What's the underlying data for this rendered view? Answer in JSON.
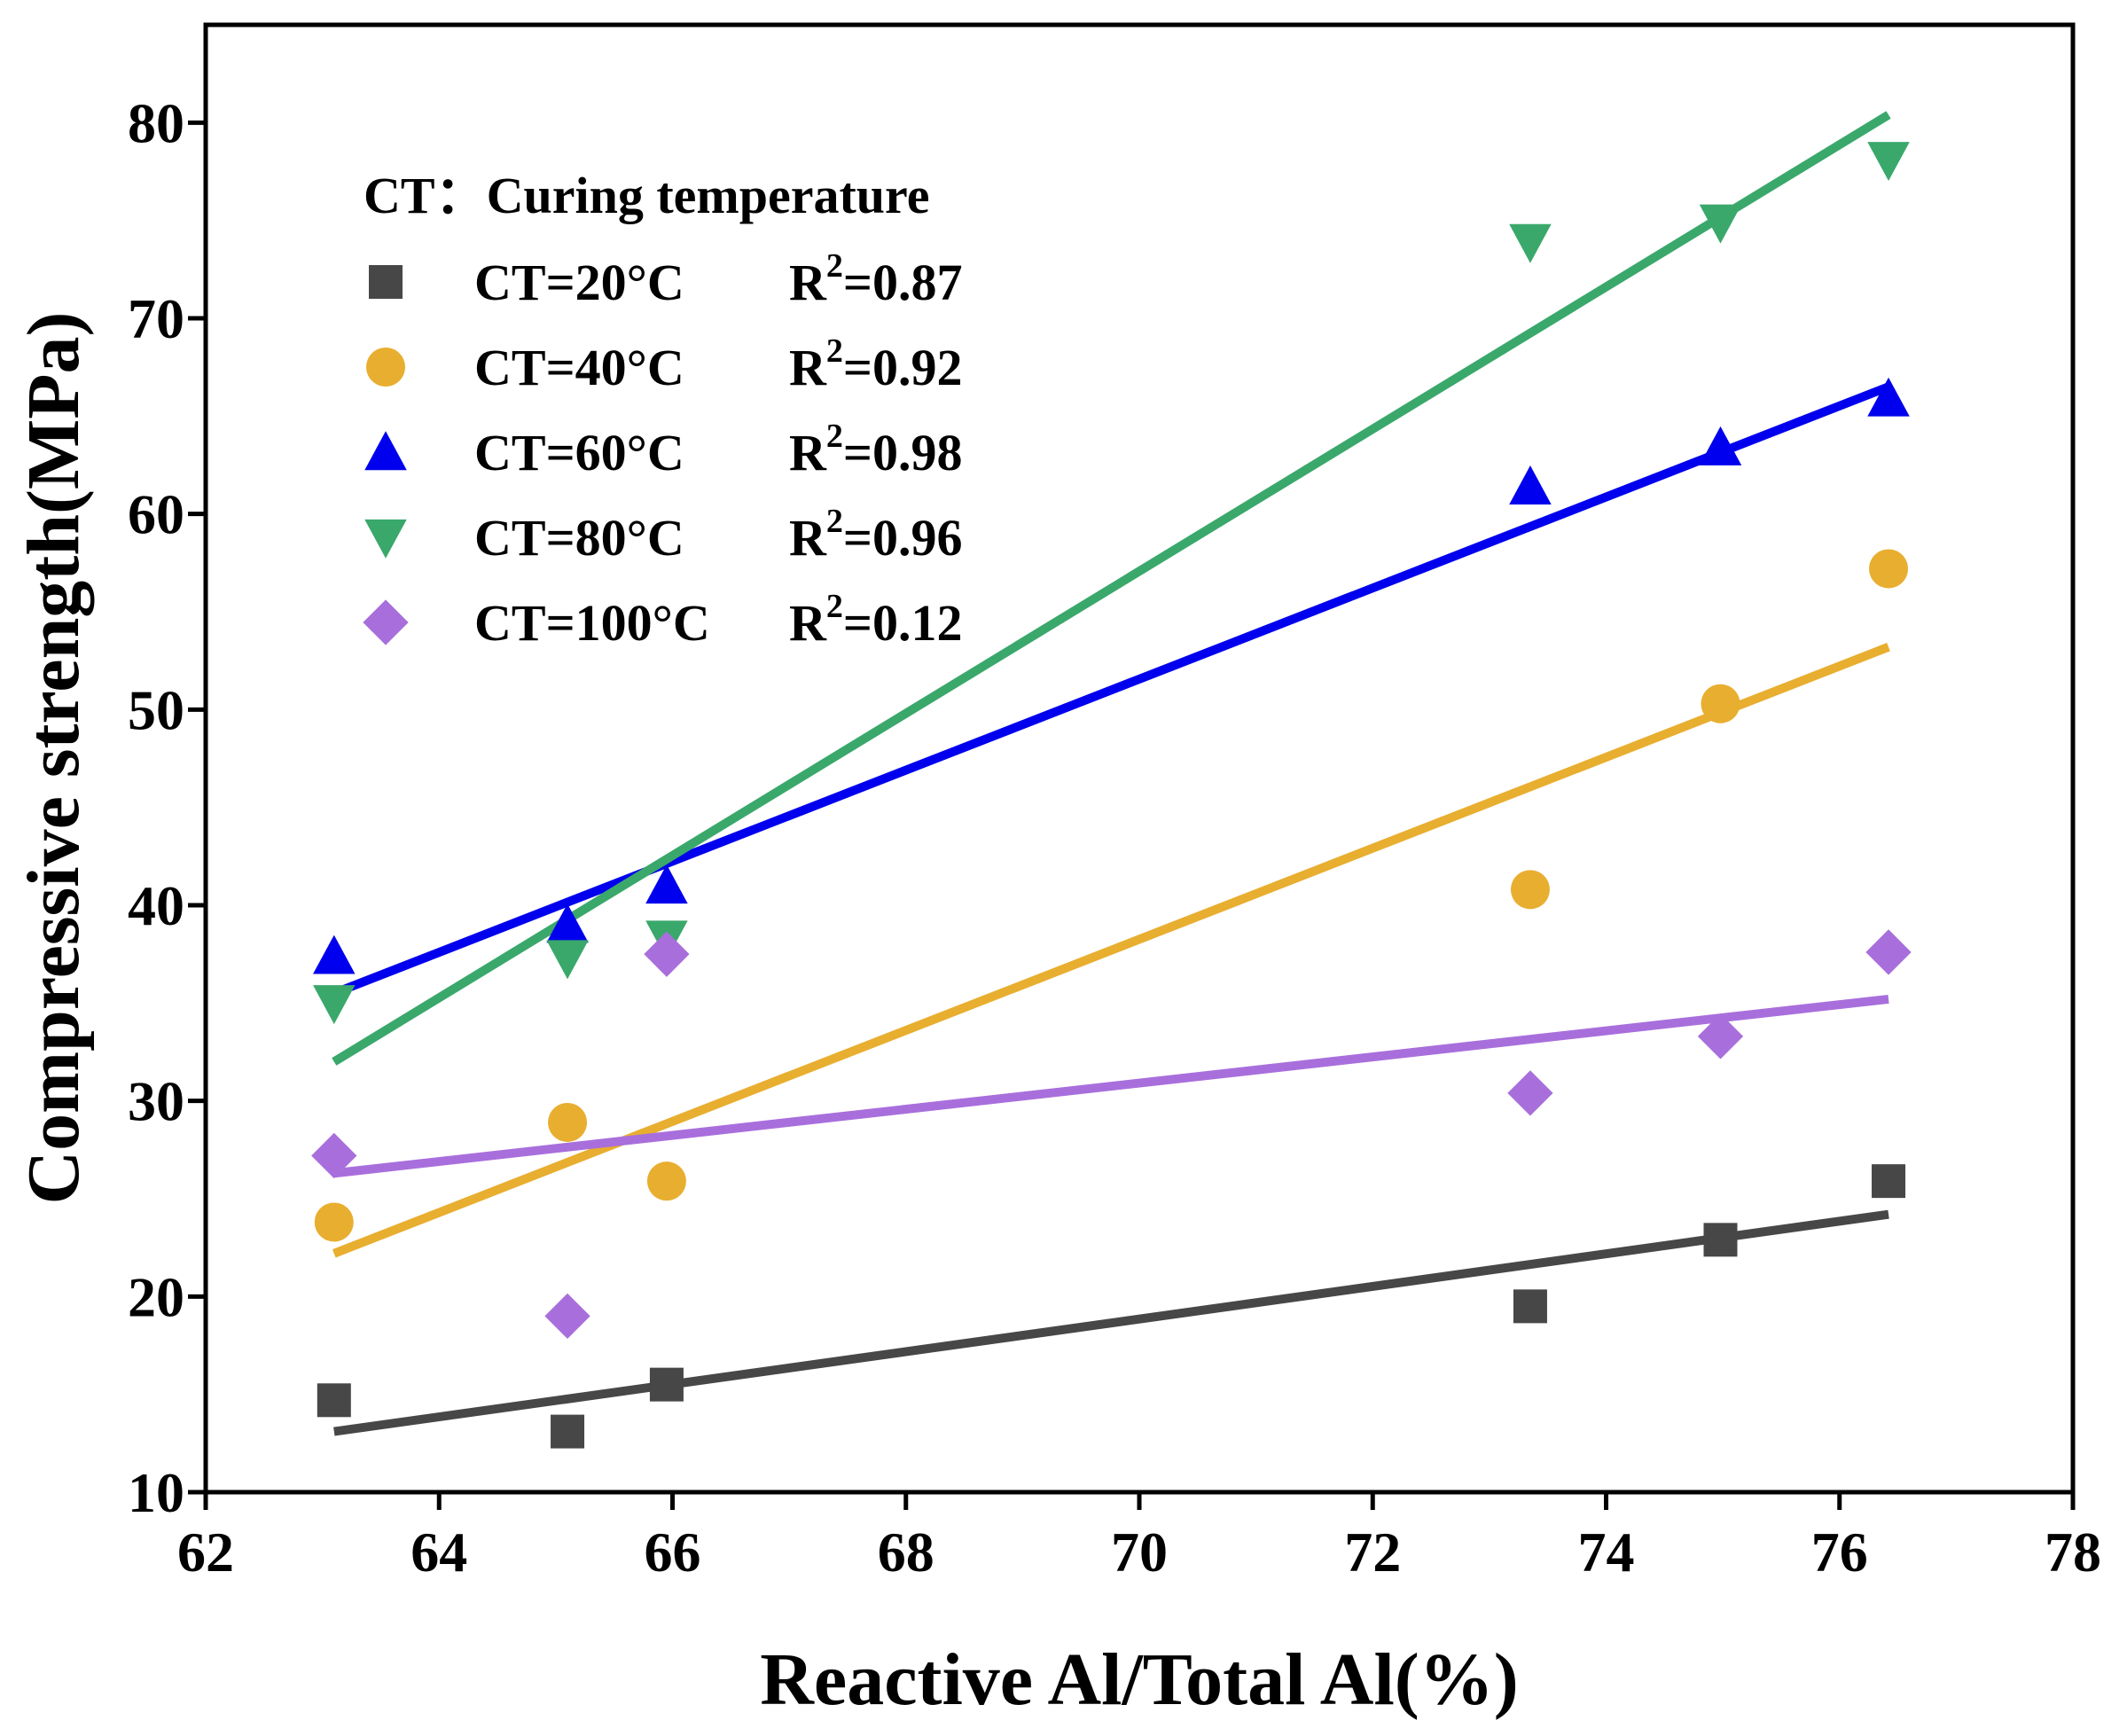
{
  "chart_data": {
    "type": "scatter",
    "title": "",
    "xlabel": "Reactive Al/Total Al(%)",
    "ylabel": "Compressive strength(MPa)",
    "xlim": [
      62,
      78
    ],
    "ylim": [
      10,
      85
    ],
    "xticks": [
      62,
      64,
      66,
      68,
      70,
      72,
      74,
      76,
      78
    ],
    "yticks": [
      10,
      20,
      30,
      40,
      50,
      60,
      70,
      80
    ],
    "grid": false,
    "legend_position": "top-left",
    "legend_title": "CT：Curing temperature",
    "x": [
      63.1,
      65.1,
      65.95,
      73.35,
      74.98,
      76.42
    ],
    "series": [
      {
        "name": "CT=20°C",
        "r2_label": "R",
        "r2_sup": "2",
        "r2_value": "=0.87",
        "marker": "square",
        "color": "#474747",
        "values": [
          14.7,
          13.1,
          15.5,
          19.5,
          22.9,
          25.9
        ],
        "fit": [
          13.1,
          24.2
        ]
      },
      {
        "name": "CT=40°C",
        "r2_label": "R",
        "r2_sup": "2",
        "r2_value": "=0.92",
        "marker": "circle",
        "color": "#e8ae2f",
        "values": [
          23.8,
          28.9,
          25.9,
          40.8,
          50.3,
          57.2
        ],
        "fit": [
          22.2,
          53.2
        ]
      },
      {
        "name": "CT=60°C",
        "r2_label": "R",
        "r2_sup": "2",
        "r2_value": "=0.98",
        "marker": "triangle-up",
        "color": "#0000ee",
        "values": [
          37.4,
          39.0,
          41.0,
          61.4,
          63.4,
          65.9
        ],
        "fit": [
          35.5,
          66.5
        ]
      },
      {
        "name": "CT=80°C",
        "r2_label": "R",
        "r2_sup": "2",
        "r2_value": "=0.96",
        "marker": "triangle-down",
        "color": "#3aa86b",
        "values": [
          35.0,
          37.3,
          38.3,
          73.9,
          74.9,
          78.1
        ],
        "fit": [
          32.0,
          80.4
        ]
      },
      {
        "name": "CT=100°C",
        "r2_label": "R",
        "r2_sup": "2",
        "r2_value": "=0.12",
        "marker": "diamond",
        "color": "#a86fdc",
        "values": [
          27.2,
          19.0,
          37.5,
          30.4,
          33.3,
          37.6
        ],
        "fit": [
          26.3,
          35.2
        ]
      }
    ]
  }
}
